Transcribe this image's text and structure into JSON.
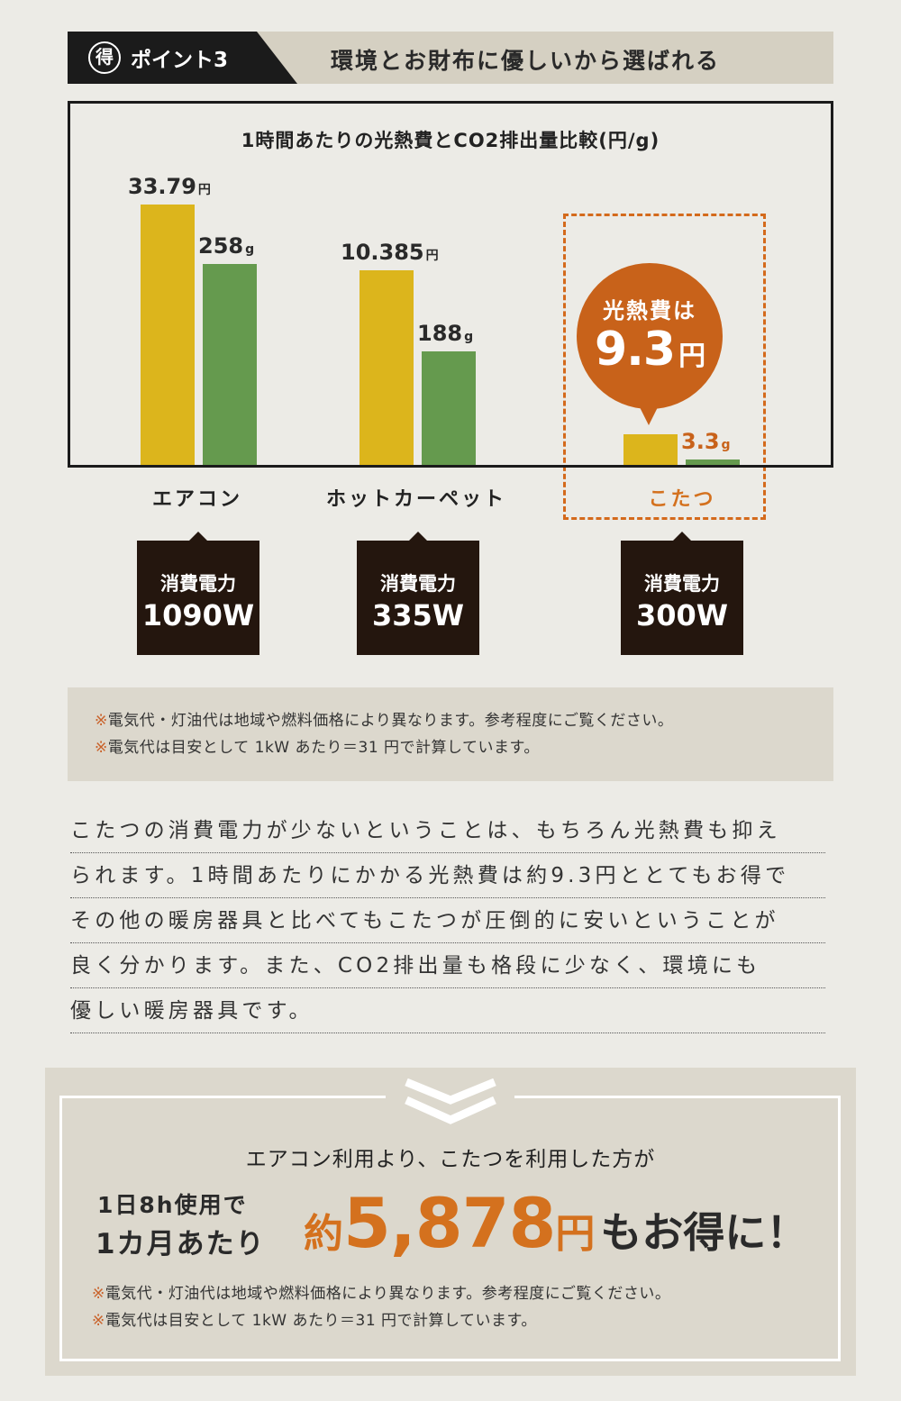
{
  "header": {
    "badge": "得",
    "point": "ポイント3",
    "title": "環境とお財布に優しいから選ばれる"
  },
  "chart_data": {
    "type": "bar",
    "title": "1時間あたりの光熱費とCO2排出量比較(円/g)",
    "categories": [
      "エアコン",
      "ホットカーペット",
      "こたつ"
    ],
    "series": [
      {
        "unit": "円",
        "values": [
          33.79,
          10.385,
          9.3
        ],
        "color": "#dcb51c"
      },
      {
        "unit": "g",
        "values": [
          258,
          188,
          3.3
        ],
        "color": "#659a4e"
      }
    ],
    "data_labels": [
      [
        "33.79",
        "258"
      ],
      [
        "10.385",
        "188"
      ],
      [
        null,
        "3.3"
      ]
    ],
    "highlight_category": "こたつ",
    "highlight_color": "#c8621a"
  },
  "callout": {
    "line1": "光熱費は",
    "value": "9.3",
    "unit": "円"
  },
  "power": [
    {
      "label": "消費電力",
      "value": "1090W"
    },
    {
      "label": "消費電力",
      "value": "335W"
    },
    {
      "label": "消費電力",
      "value": "300W"
    }
  ],
  "notes": {
    "mark": "※",
    "n1": "電気代・灯油代は地域や燃料価格により異なります。参考程度にご覧ください。",
    "n2": "電気代は目安として 1kW あたり＝31 円で計算しています。"
  },
  "paragraph": [
    "こたつの消費電力が少ないということは、もちろん光熱費も抑え",
    "られます。1時間あたりにかかる光熱費は約9.3円ととてもお得で",
    "その他の暖房器具と比べてもこたつが圧倒的に安いということが",
    "良く分かります。また、CO2排出量も格段に少なく、環境にも",
    "優しい暖房器具です。"
  ],
  "summary": {
    "lead": "エアコン利用より、こたつを利用した方が",
    "cond1": "1日8h使用で",
    "cond2": "1カ月あたり",
    "prefix": "約",
    "amount": "5,878",
    "unit": "円",
    "suffix": "もお得に！"
  },
  "colors": {
    "accent": "#d4711e",
    "yellow": "#dcb51c",
    "green": "#659a4e",
    "dark": "#24160e"
  }
}
